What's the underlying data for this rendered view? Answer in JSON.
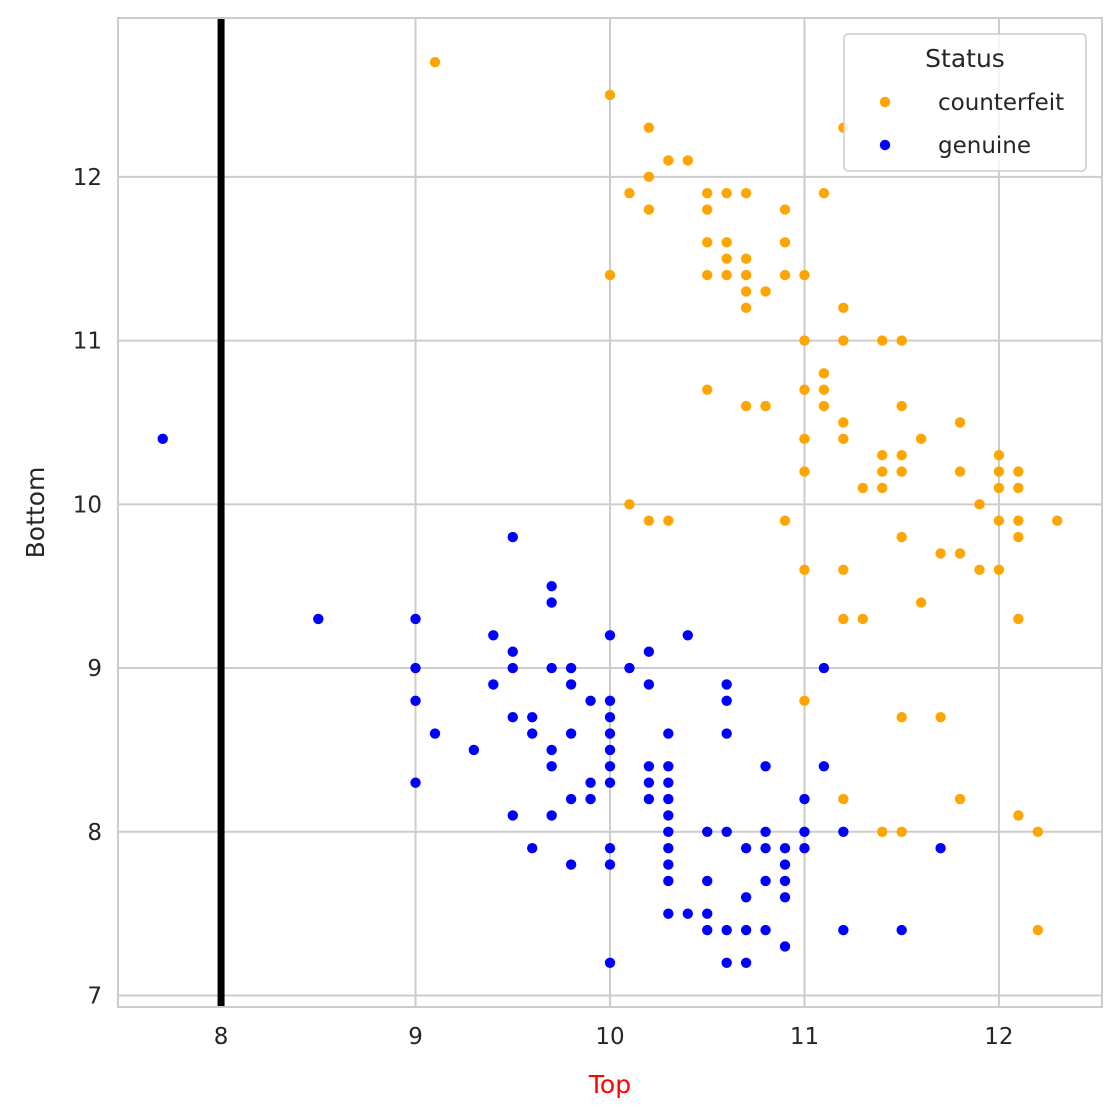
{
  "chart_data": {
    "type": "scatter",
    "xlabel": "Top",
    "ylabel": "Bottom",
    "xlabel_color": "#ff0000",
    "xlim": [
      7.47,
      12.53
    ],
    "ylim": [
      6.93,
      12.97
    ],
    "x_ticks": [
      8,
      9,
      10,
      11,
      12
    ],
    "y_ticks": [
      7,
      8,
      9,
      10,
      11,
      12
    ],
    "grid": true,
    "vline": {
      "x": 8,
      "color": "#000000"
    },
    "legend": {
      "title": "Status",
      "position": "top-right"
    },
    "series": [
      {
        "name": "counterfeit",
        "color": "#ffa500",
        "points": [
          [
            9.1,
            12.7
          ],
          [
            10.0,
            12.5
          ],
          [
            10.2,
            12.3
          ],
          [
            11.2,
            12.3
          ],
          [
            10.3,
            12.1
          ],
          [
            10.4,
            12.1
          ],
          [
            10.2,
            12.0
          ],
          [
            10.1,
            11.9
          ],
          [
            10.5,
            11.9
          ],
          [
            10.6,
            11.9
          ],
          [
            10.7,
            11.9
          ],
          [
            11.1,
            11.9
          ],
          [
            10.2,
            11.8
          ],
          [
            10.5,
            11.8
          ],
          [
            10.9,
            11.8
          ],
          [
            10.5,
            11.6
          ],
          [
            10.6,
            11.6
          ],
          [
            10.9,
            11.6
          ],
          [
            10.6,
            11.5
          ],
          [
            10.7,
            11.5
          ],
          [
            10.0,
            11.4
          ],
          [
            10.5,
            11.4
          ],
          [
            10.6,
            11.4
          ],
          [
            10.7,
            11.4
          ],
          [
            10.9,
            11.4
          ],
          [
            11.0,
            11.4
          ],
          [
            10.7,
            11.3
          ],
          [
            10.8,
            11.3
          ],
          [
            10.7,
            11.2
          ],
          [
            11.2,
            11.2
          ],
          [
            11.0,
            11.0
          ],
          [
            11.2,
            11.0
          ],
          [
            11.4,
            11.0
          ],
          [
            11.5,
            11.0
          ],
          [
            11.1,
            10.8
          ],
          [
            10.5,
            10.7
          ],
          [
            11.0,
            10.7
          ],
          [
            11.1,
            10.7
          ],
          [
            10.7,
            10.6
          ],
          [
            10.8,
            10.6
          ],
          [
            11.1,
            10.6
          ],
          [
            11.5,
            10.6
          ],
          [
            11.2,
            10.5
          ],
          [
            11.8,
            10.5
          ],
          [
            11.0,
            10.4
          ],
          [
            11.2,
            10.4
          ],
          [
            11.6,
            10.4
          ],
          [
            11.4,
            10.3
          ],
          [
            11.5,
            10.3
          ],
          [
            12.0,
            10.3
          ],
          [
            11.0,
            10.2
          ],
          [
            11.4,
            10.2
          ],
          [
            11.5,
            10.2
          ],
          [
            11.8,
            10.2
          ],
          [
            12.0,
            10.2
          ],
          [
            12.1,
            10.2
          ],
          [
            11.3,
            10.1
          ],
          [
            11.4,
            10.1
          ],
          [
            12.0,
            10.1
          ],
          [
            12.1,
            10.1
          ],
          [
            10.1,
            10.0
          ],
          [
            11.9,
            10.0
          ],
          [
            10.2,
            9.9
          ],
          [
            10.3,
            9.9
          ],
          [
            10.9,
            9.9
          ],
          [
            12.0,
            9.9
          ],
          [
            12.1,
            9.9
          ],
          [
            12.3,
            9.9
          ],
          [
            11.5,
            9.8
          ],
          [
            12.1,
            9.8
          ],
          [
            11.7,
            9.7
          ],
          [
            11.8,
            9.7
          ],
          [
            11.0,
            9.6
          ],
          [
            11.2,
            9.6
          ],
          [
            11.9,
            9.6
          ],
          [
            12.0,
            9.6
          ],
          [
            11.6,
            9.4
          ],
          [
            11.2,
            9.3
          ],
          [
            11.3,
            9.3
          ],
          [
            12.1,
            9.3
          ],
          [
            11.0,
            8.8
          ],
          [
            11.5,
            8.7
          ],
          [
            11.7,
            8.7
          ],
          [
            11.2,
            8.2
          ],
          [
            11.8,
            8.2
          ],
          [
            12.1,
            8.1
          ],
          [
            11.4,
            8.0
          ],
          [
            11.5,
            8.0
          ],
          [
            12.2,
            8.0
          ],
          [
            12.2,
            7.4
          ]
        ]
      },
      {
        "name": "genuine",
        "color": "#0000ff",
        "points": [
          [
            7.7,
            10.4
          ],
          [
            9.5,
            9.8
          ],
          [
            9.7,
            9.5
          ],
          [
            9.7,
            9.4
          ],
          [
            8.5,
            9.3
          ],
          [
            9.0,
            9.3
          ],
          [
            9.4,
            9.2
          ],
          [
            10.0,
            9.2
          ],
          [
            10.4,
            9.2
          ],
          [
            9.5,
            9.1
          ],
          [
            10.2,
            9.1
          ],
          [
            9.0,
            9.0
          ],
          [
            9.5,
            9.0
          ],
          [
            9.7,
            9.0
          ],
          [
            9.8,
            9.0
          ],
          [
            10.1,
            9.0
          ],
          [
            11.1,
            9.0
          ],
          [
            9.4,
            8.9
          ],
          [
            9.8,
            8.9
          ],
          [
            10.2,
            8.9
          ],
          [
            10.6,
            8.9
          ],
          [
            9.0,
            8.8
          ],
          [
            9.9,
            8.8
          ],
          [
            10.0,
            8.8
          ],
          [
            10.6,
            8.8
          ],
          [
            9.5,
            8.7
          ],
          [
            9.6,
            8.7
          ],
          [
            10.0,
            8.7
          ],
          [
            9.1,
            8.6
          ],
          [
            9.6,
            8.6
          ],
          [
            9.8,
            8.6
          ],
          [
            10.0,
            8.6
          ],
          [
            10.3,
            8.6
          ],
          [
            10.6,
            8.6
          ],
          [
            9.3,
            8.5
          ],
          [
            9.7,
            8.5
          ],
          [
            10.0,
            8.5
          ],
          [
            9.7,
            8.4
          ],
          [
            10.0,
            8.4
          ],
          [
            10.2,
            8.4
          ],
          [
            10.3,
            8.4
          ],
          [
            10.8,
            8.4
          ],
          [
            11.1,
            8.4
          ],
          [
            9.0,
            8.3
          ],
          [
            9.9,
            8.3
          ],
          [
            10.0,
            8.3
          ],
          [
            10.2,
            8.3
          ],
          [
            10.3,
            8.3
          ],
          [
            9.8,
            8.2
          ],
          [
            9.9,
            8.2
          ],
          [
            10.2,
            8.2
          ],
          [
            10.3,
            8.2
          ],
          [
            11.0,
            8.2
          ],
          [
            9.5,
            8.1
          ],
          [
            9.7,
            8.1
          ],
          [
            10.3,
            8.1
          ],
          [
            10.3,
            8.0
          ],
          [
            10.5,
            8.0
          ],
          [
            10.6,
            8.0
          ],
          [
            10.8,
            8.0
          ],
          [
            11.0,
            8.0
          ],
          [
            11.2,
            8.0
          ],
          [
            9.6,
            7.9
          ],
          [
            10.0,
            7.9
          ],
          [
            10.3,
            7.9
          ],
          [
            10.7,
            7.9
          ],
          [
            10.8,
            7.9
          ],
          [
            10.9,
            7.9
          ],
          [
            11.0,
            7.9
          ],
          [
            11.7,
            7.9
          ],
          [
            9.8,
            7.8
          ],
          [
            10.0,
            7.8
          ],
          [
            10.3,
            7.8
          ],
          [
            10.9,
            7.8
          ],
          [
            10.3,
            7.7
          ],
          [
            10.5,
            7.7
          ],
          [
            10.8,
            7.7
          ],
          [
            10.9,
            7.7
          ],
          [
            10.7,
            7.6
          ],
          [
            10.9,
            7.6
          ],
          [
            10.3,
            7.5
          ],
          [
            10.4,
            7.5
          ],
          [
            10.5,
            7.5
          ],
          [
            10.5,
            7.4
          ],
          [
            10.6,
            7.4
          ],
          [
            10.7,
            7.4
          ],
          [
            10.8,
            7.4
          ],
          [
            11.2,
            7.4
          ],
          [
            11.5,
            7.4
          ],
          [
            10.9,
            7.3
          ],
          [
            10.0,
            7.2
          ],
          [
            10.6,
            7.2
          ],
          [
            10.7,
            7.2
          ]
        ]
      }
    ]
  }
}
